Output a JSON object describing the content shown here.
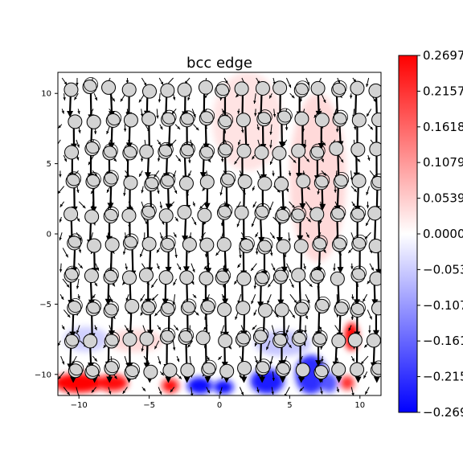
{
  "chart_data": {
    "type": "heatmap",
    "title": "bcc edge",
    "xlabel": "",
    "ylabel": "",
    "xlim": [
      -11.5,
      11.5
    ],
    "ylim": [
      -11.5,
      11.5
    ],
    "x_ticks": [
      -10,
      -5,
      0,
      5,
      10
    ],
    "x_tick_labels": [
      "−10",
      "−5",
      "0",
      "5",
      "10"
    ],
    "y_ticks": [
      10,
      5,
      0,
      -5,
      -10
    ],
    "y_tick_labels": [
      "10",
      "5",
      "0",
      "−5",
      "−10"
    ],
    "colorbar": {
      "colormap": "bwr",
      "min": -0.2697,
      "max": 0.2697,
      "ticks": [
        0.2697,
        0.2157,
        0.1618,
        0.1079,
        0.0539,
        0.0,
        -0.0539,
        -0.1079,
        -0.1618,
        -0.2157,
        -0.2697
      ],
      "tick_labels": [
        "0.2697",
        "0.2157",
        "0.1618",
        "0.1079",
        "0.0539",
        "0.0000",
        "−0.053",
        "−0.107",
        "−0.161",
        "−0.215",
        "−0.269"
      ]
    },
    "atoms": {
      "rows_y": [
        10.3,
        8.1,
        5.9,
        3.7,
        1.4,
        -0.8,
        -3.1,
        -5.3,
        -7.5,
        -9.7
      ],
      "x_start": -10.5,
      "x_spacing": 1.35,
      "marker_color": "#d3d3d3"
    },
    "displacement_field": {
      "quiver_color": "#000000",
      "mean_direction": "downward",
      "magnitude_range": [
        0.3,
        1.0
      ]
    },
    "color_regions": [
      {
        "x": -10.0,
        "y": -10.6,
        "value": 0.27,
        "sx": 1.8,
        "sy": 0.7
      },
      {
        "x": -7.6,
        "y": -10.6,
        "value": 0.26,
        "sx": 1.1,
        "sy": 0.6
      },
      {
        "x": -3.5,
        "y": -10.8,
        "value": 0.26,
        "sx": 0.6,
        "sy": 0.5
      },
      {
        "x": -1.4,
        "y": -10.8,
        "value": -0.26,
        "sx": 0.9,
        "sy": 0.6
      },
      {
        "x": 0.3,
        "y": -10.9,
        "value": -0.26,
        "sx": 0.7,
        "sy": 0.5
      },
      {
        "x": 3.4,
        "y": -10.5,
        "value": -0.24,
        "sx": 1.2,
        "sy": 0.9
      },
      {
        "x": 6.5,
        "y": -10.0,
        "value": -0.22,
        "sx": 1.1,
        "sy": 1.4
      },
      {
        "x": 7.8,
        "y": -10.6,
        "value": -0.18,
        "sx": 0.6,
        "sy": 0.7
      },
      {
        "x": 9.4,
        "y": -7.3,
        "value": 0.27,
        "sx": 0.5,
        "sy": 1.0
      },
      {
        "x": 9.1,
        "y": -10.6,
        "value": 0.22,
        "sx": 0.5,
        "sy": 0.5
      },
      {
        "x": -9.5,
        "y": -7.5,
        "value": -0.05,
        "sx": 1.6,
        "sy": 0.9
      },
      {
        "x": 4.5,
        "y": -7.8,
        "value": -0.06,
        "sx": 2.0,
        "sy": 0.9
      },
      {
        "x": -6.0,
        "y": -7.6,
        "value": 0.04,
        "sx": 2.0,
        "sy": 0.8
      },
      {
        "x": 2.0,
        "y": 8.0,
        "value": 0.03,
        "sx": 2.5,
        "sy": 3.5
      },
      {
        "x": 7.0,
        "y": 4.0,
        "value": 0.04,
        "sx": 2.0,
        "sy": 6.0
      }
    ]
  }
}
